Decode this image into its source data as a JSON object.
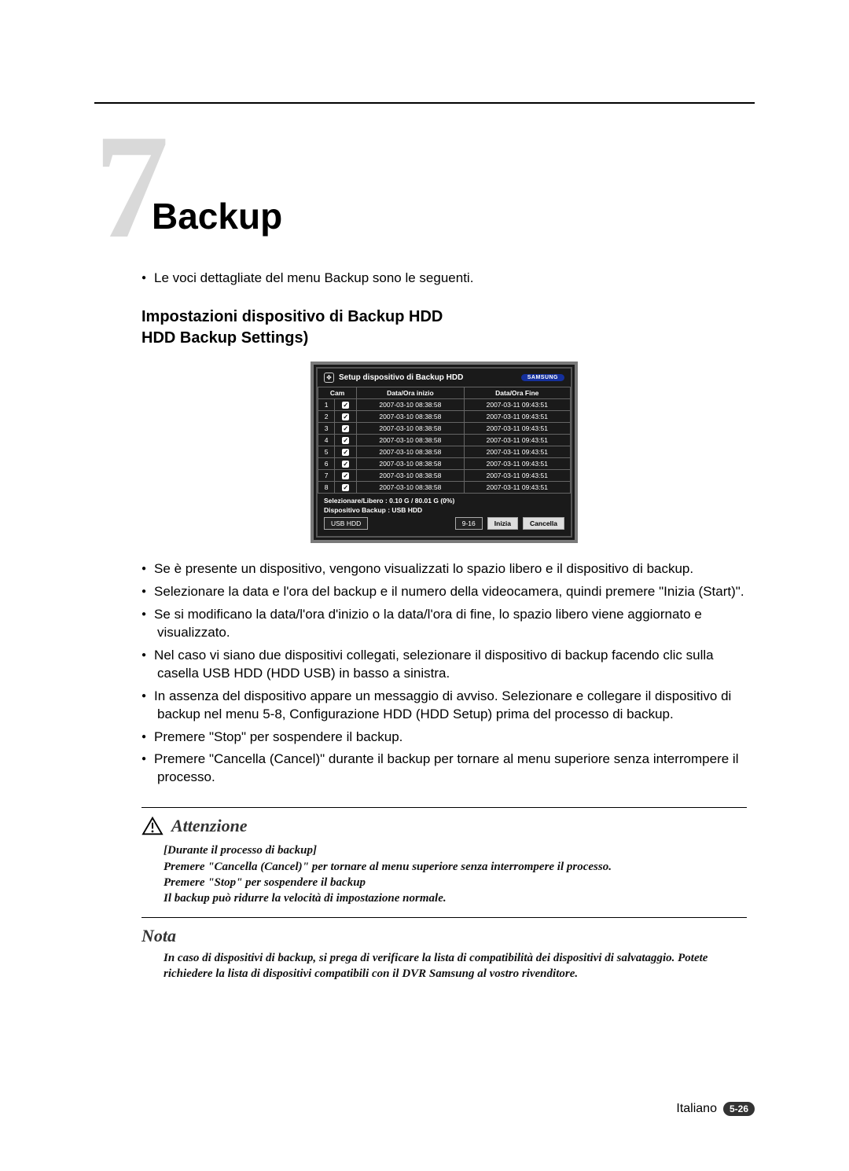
{
  "chapter": {
    "number": "7",
    "title": "Backup"
  },
  "lead": "Le voci dettagliate del menu Backup sono le seguenti.",
  "subheading": {
    "line1": "Impostazioni dispositivo di Backup HDD",
    "line2": "HDD Backup Settings)"
  },
  "screenshot": {
    "title": "Setup dispositivo di Backup HDD",
    "logo": "SAMSUNG",
    "columns": [
      "Cam",
      "Data/Ora inizio",
      "Data/Ora Fine"
    ],
    "rows": [
      {
        "cam": "1",
        "start": "2007-03-10   08:38:58",
        "end": "2007-03-11   09:43:51"
      },
      {
        "cam": "2",
        "start": "2007-03-10   08:38:58",
        "end": "2007-03-11   09:43:51"
      },
      {
        "cam": "3",
        "start": "2007-03-10   08:38:58",
        "end": "2007-03-11   09:43:51"
      },
      {
        "cam": "4",
        "start": "2007-03-10   08:38:58",
        "end": "2007-03-11   09:43:51"
      },
      {
        "cam": "5",
        "start": "2007-03-10   08:38:58",
        "end": "2007-03-11   09:43:51"
      },
      {
        "cam": "6",
        "start": "2007-03-10   08:38:58",
        "end": "2007-03-11   09:43:51"
      },
      {
        "cam": "7",
        "start": "2007-03-10   08:38:58",
        "end": "2007-03-11   09:43:51"
      },
      {
        "cam": "8",
        "start": "2007-03-10   08:38:58",
        "end": "2007-03-11   09:43:51"
      }
    ],
    "footer_line1": "Selezionare/Libero : 0.10 G / 80.01 G (0%)",
    "footer_line2": "Dispositivo Backup : USB HDD",
    "buttons": {
      "device": "USB HDD",
      "range": "9-16",
      "start": "Inizia",
      "cancel": "Cancella"
    }
  },
  "bullets": [
    "Se è presente un dispositivo, vengono visualizzati lo spazio libero e il dispositivo di backup.",
    "Selezionare la data e l'ora del backup e il numero della videocamera, quindi premere \"Inizia (Start)\".",
    "Se si modificano la data/l'ora d'inizio o la data/l'ora di fine, lo spazio libero viene aggiornato e visualizzato.",
    "Nel caso vi siano due dispositivi collegati, selezionare il dispositivo di backup facendo clic sulla casella USB HDD (HDD USB) in basso a sinistra.",
    "In assenza del dispositivo appare un messaggio di avviso. Selezionare e collegare il dispositivo di backup nel menu 5-8, Configurazione HDD (HDD Setup) prima del processo di backup.",
    "Premere \"Stop\" per sospendere il backup.",
    "Premere \"Cancella (Cancel)\" durante il backup per tornare al menu superiore senza interrompere il processo."
  ],
  "attenzione": {
    "title": "Attenzione",
    "lines": [
      "[Durante il processo di backup]",
      "Premere \"Cancella (Cancel)\" per tornare al menu superiore senza interrompere il processo.",
      "Premere \"Stop\" per sospendere il backup",
      "Il backup può ridurre la velocità di impostazione normale."
    ]
  },
  "nota": {
    "title": "Nota",
    "body": "In caso di dispositivi di backup, si prega di verificare la lista di compatibilità dei dispositivi di salvataggio. Potete richiedere la lista di dispositivi compatibili con il DVR Samsung al vostro rivenditore."
  },
  "footer": {
    "lang": "Italiano",
    "page": "5-26"
  },
  "colors": {
    "ghost_number": "#d9d9d9",
    "screenshot_bg": "#1a1a1a",
    "screenshot_border": "#7a7a7a",
    "logo_bg": "#15309c",
    "badge_bg": "#333333"
  }
}
